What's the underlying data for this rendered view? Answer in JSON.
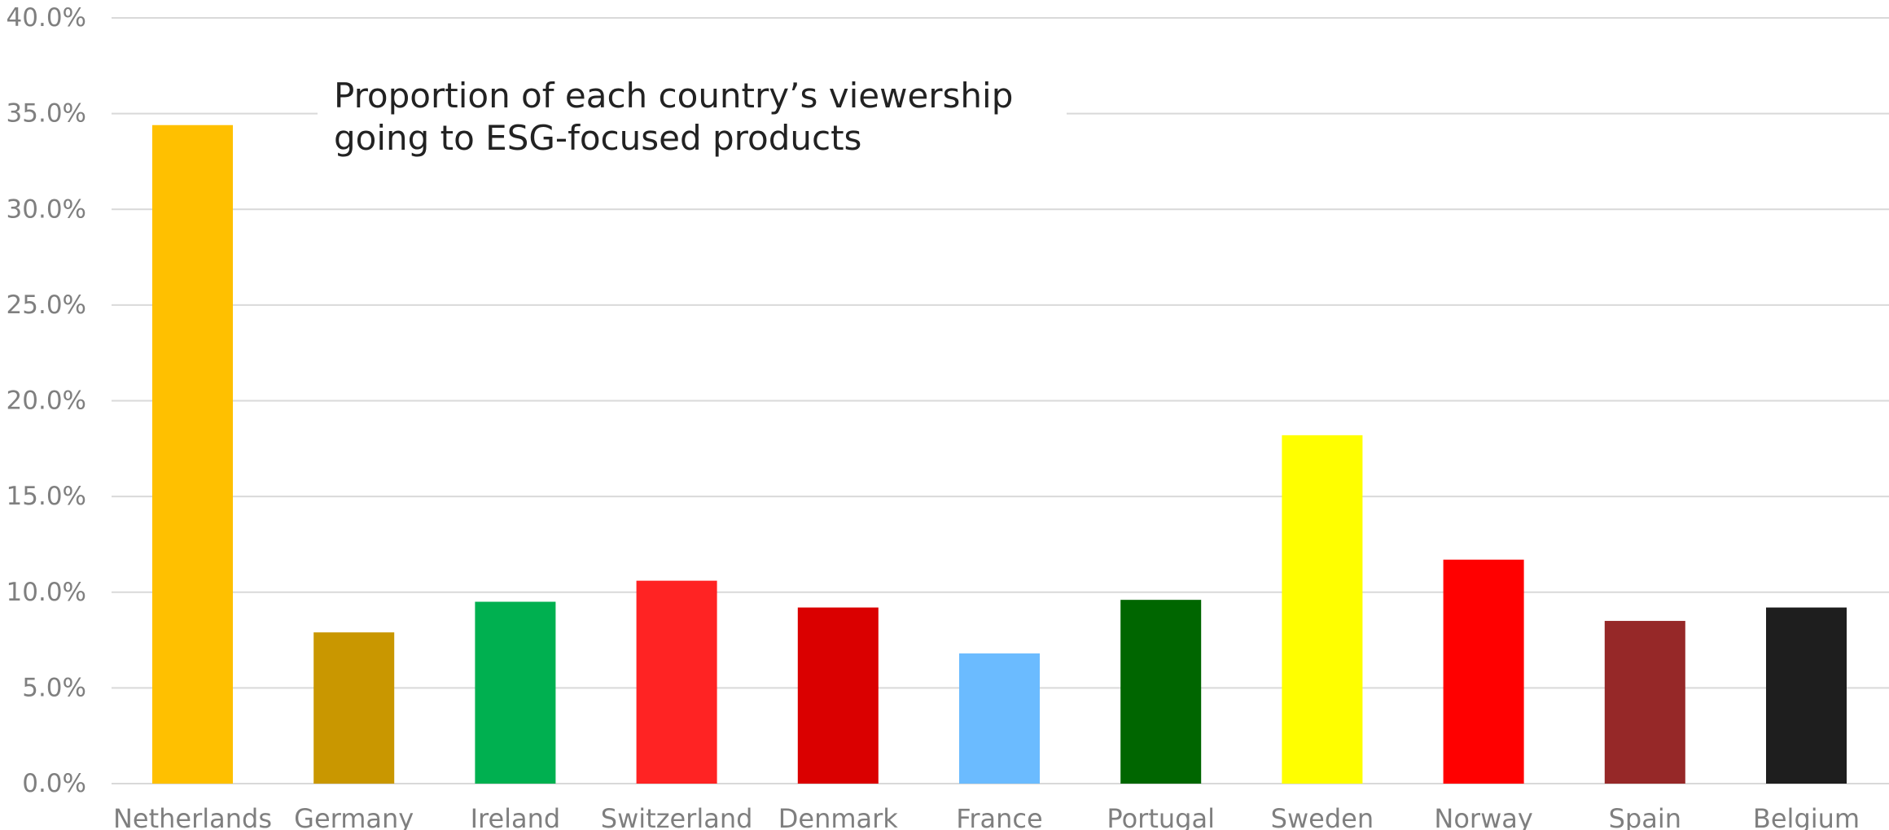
{
  "chart_data": {
    "type": "bar",
    "title_lines": [
      "Proportion of each country’s viewership",
      "going to ESG-focused products"
    ],
    "xlabel": "",
    "ylabel": "",
    "ylim": [
      0,
      40
    ],
    "ytick_values": [
      0,
      5,
      10,
      15,
      20,
      25,
      30,
      35,
      40
    ],
    "ytick_labels": [
      "0.0%",
      "5.0%",
      "10.0%",
      "15.0%",
      "20.0%",
      "25.0%",
      "30.0%",
      "35.0%",
      "40.0%"
    ],
    "grid": true,
    "legend": "none",
    "categories": [
      "Netherlands",
      "Germany",
      "Ireland",
      "Switzerland",
      "Denmark",
      "France",
      "Portugal",
      "Sweden",
      "Norway",
      "Spain",
      "Belgium"
    ],
    "values": [
      34.4,
      7.9,
      9.5,
      10.6,
      9.2,
      6.8,
      9.6,
      18.2,
      11.7,
      8.5,
      9.2
    ],
    "colors": [
      "#FFC000",
      "#C99700",
      "#00B050",
      "#FF2323",
      "#DA0000",
      "#6BBBFF",
      "#006600",
      "#FFFF00",
      "#FF0000",
      "#962828",
      "#1E1E1E"
    ]
  }
}
